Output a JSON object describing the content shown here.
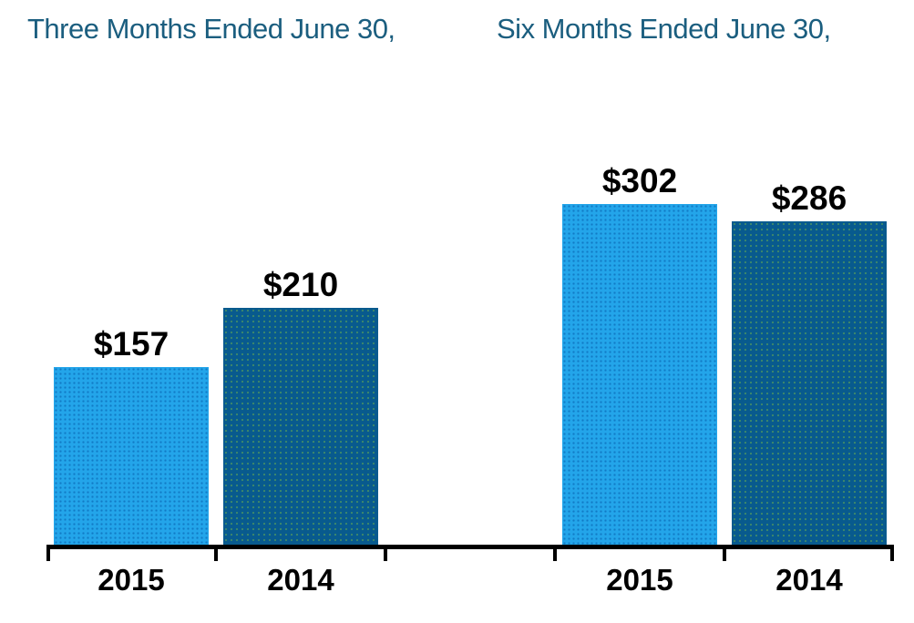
{
  "group_titles": {
    "three_months": "Three Months Ended June 30,",
    "six_months": "Six Months Ended June 30,"
  },
  "colors": {
    "series_2015_light_blue": "#23A5EA",
    "series_2014_dark_blue": "#085A8E",
    "group_title_text": "#1B5E7F",
    "data_label_text": "#000000",
    "axis": "#000000",
    "background": "#FFFFFF"
  },
  "chart_data": {
    "type": "bar",
    "title": "",
    "group_titles": [
      "Three Months Ended June 30,",
      "Six Months Ended June 30,"
    ],
    "categories": [
      "2015",
      "2014",
      "",
      "2015",
      "2014"
    ],
    "values": [
      157,
      210,
      null,
      302,
      286
    ],
    "data_labels": [
      "$157",
      "$210",
      null,
      "$302",
      "$286"
    ],
    "series": [
      "2015",
      "2014",
      null,
      "2015",
      "2014"
    ],
    "series_colors": {
      "2015": "#23A5EA",
      "2014": "#085A8E"
    },
    "ylim": [
      0,
      440
    ],
    "grid": false,
    "legend": false,
    "x_axis_line": true,
    "x_axis_ticks": "at category boundaries, pointing down"
  }
}
